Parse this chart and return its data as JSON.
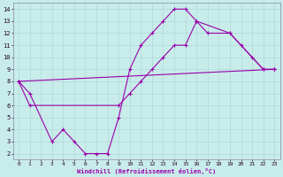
{
  "xlabel": "Windchill (Refroidissement éolien,°C)",
  "xlim": [
    -0.5,
    23.5
  ],
  "ylim": [
    1.5,
    14.5
  ],
  "xticks": [
    0,
    1,
    2,
    3,
    4,
    5,
    6,
    7,
    8,
    9,
    10,
    11,
    12,
    13,
    14,
    15,
    16,
    17,
    18,
    19,
    20,
    21,
    22,
    23
  ],
  "yticks": [
    2,
    3,
    4,
    5,
    6,
    7,
    8,
    9,
    10,
    11,
    12,
    13,
    14
  ],
  "bg_color": "#c8ecea",
  "line_color": "#9900aa",
  "grid_color": "#b0d8d8",
  "lines": [
    {
      "x": [
        0,
        1,
        9,
        10,
        11,
        12,
        13,
        14,
        15,
        16,
        17,
        19,
        20,
        21,
        22,
        23
      ],
      "y": [
        8,
        6,
        6,
        7,
        8,
        9,
        10,
        11,
        11,
        13,
        12,
        12,
        11,
        10,
        9,
        9
      ]
    },
    {
      "x": [
        0,
        1,
        3,
        4,
        5,
        6,
        7,
        8,
        9,
        10,
        11,
        12,
        13,
        14,
        15,
        16,
        19,
        22,
        23
      ],
      "y": [
        8,
        7,
        3,
        4,
        3,
        2,
        2,
        2,
        5,
        9,
        11,
        12,
        13,
        14,
        14,
        13,
        12,
        9,
        9
      ]
    },
    {
      "x": [
        0,
        23
      ],
      "y": [
        8,
        9
      ]
    }
  ]
}
